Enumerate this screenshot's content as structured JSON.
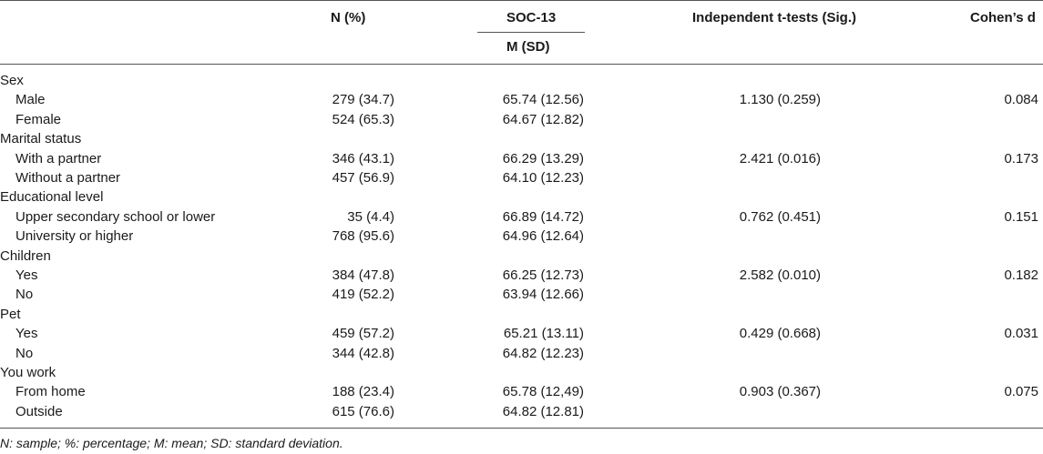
{
  "headers": {
    "n_pct": "N (%)",
    "soc13": "SOC-13",
    "m_sd": "M (SD)",
    "ttest": "Independent t-tests (Sig.)",
    "cohens_d": "Cohen’s d"
  },
  "groups": [
    {
      "label": "Sex",
      "rows": [
        {
          "label": "Male",
          "n": "279 (34.7)",
          "msd": "65.74 (12.56)",
          "t": "1.130 (0.259)",
          "d": "0.084"
        },
        {
          "label": "Female",
          "n": "524 (65.3)",
          "msd": "64.67 (12.82)",
          "t": "",
          "d": ""
        }
      ]
    },
    {
      "label": "Marital status",
      "rows": [
        {
          "label": "With a partner",
          "n": "346 (43.1)",
          "msd": "66.29 (13.29)",
          "t": "2.421 (0.016)",
          "d": "0.173"
        },
        {
          "label": "Without a partner",
          "n": "457 (56.9)",
          "msd": "64.10 (12.23)",
          "t": "",
          "d": ""
        }
      ]
    },
    {
      "label": "Educational level",
      "rows": [
        {
          "label": "Upper secondary school or lower",
          "n": "35 (4.4)",
          "msd": "66.89 (14.72)",
          "t": "0.762 (0.451)",
          "d": "0.151"
        },
        {
          "label": "University or higher",
          "n": "768 (95.6)",
          "msd": "64.96 (12.64)",
          "t": "",
          "d": ""
        }
      ]
    },
    {
      "label": "Children",
      "rows": [
        {
          "label": "Yes",
          "n": "384 (47.8)",
          "msd": "66.25 (12.73)",
          "t": "2.582 (0.010)",
          "d": "0.182"
        },
        {
          "label": "No",
          "n": "419 (52.2)",
          "msd": "63.94 (12.66)",
          "t": "",
          "d": ""
        }
      ]
    },
    {
      "label": "Pet",
      "rows": [
        {
          "label": "Yes",
          "n": "459 (57.2)",
          "msd": "65.21 (13.11)",
          "t": "0.429 (0.668)",
          "d": "0.031"
        },
        {
          "label": "No",
          "n": "344 (42.8)",
          "msd": "64.82 (12.23)",
          "t": "",
          "d": ""
        }
      ]
    },
    {
      "label": "You work",
      "rows": [
        {
          "label": "From home",
          "n": "188 (23.4)",
          "msd": "65.78 (12,49)",
          "t": "0.903 (0.367)",
          "d": "0.075"
        },
        {
          "label": "Outside",
          "n": "615 (76.6)",
          "msd": "64.82 (12.81)",
          "t": "",
          "d": ""
        }
      ]
    }
  ],
  "footnote": "N: sample; %: percentage; M: mean; SD: standard deviation."
}
